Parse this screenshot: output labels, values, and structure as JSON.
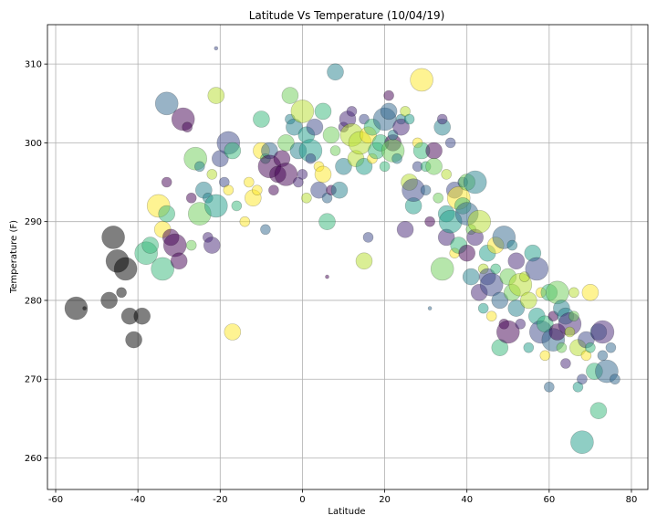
{
  "chart_data": {
    "type": "scatter",
    "title": "Latitude Vs Temperature (10/04/19)",
    "xlabel": "Latitude",
    "ylabel": "Temperature (F)",
    "xlim": [
      -62,
      84
    ],
    "ylim": [
      256,
      315
    ],
    "xticks": [
      "-60",
      "-40",
      "-20",
      "0",
      "20",
      "40",
      "60",
      "80"
    ],
    "yticks": [
      "260",
      "270",
      "280",
      "290",
      "300",
      "310"
    ],
    "grid": true,
    "colormap": "viridis",
    "alpha": 0.5,
    "marker_edge_color": "#000000",
    "points": [
      [
        -55,
        279,
        5
      ],
      [
        -53,
        279,
        2
      ],
      [
        -47,
        280,
        4
      ],
      [
        -46,
        288,
        5
      ],
      [
        -45,
        285,
        7
      ],
      [
        -44,
        281,
        3
      ],
      [
        -43,
        284,
        5
      ],
      [
        -42,
        278,
        4
      ],
      [
        -41,
        275,
        4
      ],
      [
        -39,
        278,
        4
      ],
      [
        -38,
        286,
        5
      ],
      [
        -37,
        287,
        4
      ],
      [
        -35,
        292,
        5
      ],
      [
        -34,
        289,
        4
      ],
      [
        -34,
        284,
        5
      ],
      [
        -33,
        291,
        4
      ],
      [
        -33,
        305,
        5
      ],
      [
        -33,
        295,
        3
      ],
      [
        -32,
        288,
        4
      ],
      [
        -31,
        287,
        5
      ],
      [
        -30,
        285,
        4
      ],
      [
        -29,
        303,
        5
      ],
      [
        -28,
        302,
        3
      ],
      [
        -27,
        293,
        3
      ],
      [
        -27,
        287,
        3
      ],
      [
        -26,
        298,
        5
      ],
      [
        -25,
        291,
        5
      ],
      [
        -25,
        297,
        3
      ],
      [
        -24,
        294,
        4
      ],
      [
        -23,
        293,
        3
      ],
      [
        -23,
        288,
        3
      ],
      [
        -22,
        287,
        4
      ],
      [
        -22,
        296,
        3
      ],
      [
        -21,
        306,
        4
      ],
      [
        -21,
        292,
        5
      ],
      [
        -21,
        312,
        2
      ],
      [
        -20,
        298,
        4
      ],
      [
        -19,
        295,
        3
      ],
      [
        -18,
        300,
        5
      ],
      [
        -18,
        294,
        3
      ],
      [
        -17,
        276,
        4
      ],
      [
        -17,
        299,
        4
      ],
      [
        -16,
        292,
        3
      ],
      [
        -14,
        290,
        3
      ],
      [
        -13,
        295,
        3
      ],
      [
        -12,
        293,
        4
      ],
      [
        -11,
        294,
        3
      ],
      [
        -10,
        299,
        4
      ],
      [
        -10,
        303,
        4
      ],
      [
        -9,
        298,
        3
      ],
      [
        -9,
        289,
        3
      ],
      [
        -8,
        299,
        4
      ],
      [
        -8,
        297,
        5
      ],
      [
        -7,
        294,
        3
      ],
      [
        -6,
        296,
        4
      ],
      [
        -5,
        298,
        4
      ],
      [
        -4,
        296,
        5
      ],
      [
        -4,
        300,
        4
      ],
      [
        -3,
        306,
        4
      ],
      [
        -3,
        303,
        3
      ],
      [
        -2,
        302,
        4
      ],
      [
        -1,
        299,
        4
      ],
      [
        -1,
        295,
        3
      ],
      [
        0,
        296,
        3
      ],
      [
        0,
        304,
        5
      ],
      [
        1,
        293,
        3
      ],
      [
        1,
        301,
        4
      ],
      [
        2,
        299,
        5
      ],
      [
        2,
        298,
        3
      ],
      [
        3,
        302,
        4
      ],
      [
        4,
        294,
        4
      ],
      [
        4,
        297,
        3
      ],
      [
        5,
        296,
        4
      ],
      [
        5,
        304,
        4
      ],
      [
        6,
        290,
        4
      ],
      [
        6,
        293,
        3
      ],
      [
        6,
        283,
        2
      ],
      [
        7,
        294,
        3
      ],
      [
        7,
        301,
        4
      ],
      [
        8,
        299,
        3
      ],
      [
        8,
        309,
        4
      ],
      [
        9,
        294,
        4
      ],
      [
        10,
        297,
        4
      ],
      [
        10,
        302,
        3
      ],
      [
        11,
        303,
        4
      ],
      [
        12,
        304,
        3
      ],
      [
        12,
        301,
        5
      ],
      [
        13,
        298,
        4
      ],
      [
        14,
        300,
        5
      ],
      [
        15,
        285,
        4
      ],
      [
        15,
        297,
        4
      ],
      [
        15,
        303,
        3
      ],
      [
        16,
        288,
        3
      ],
      [
        16,
        301,
        4
      ],
      [
        17,
        298,
        3
      ],
      [
        17,
        302,
        4
      ],
      [
        18,
        299,
        4
      ],
      [
        19,
        300,
        4
      ],
      [
        20,
        297,
        3
      ],
      [
        20,
        303,
        5
      ],
      [
        21,
        304,
        4
      ],
      [
        21,
        306,
        3
      ],
      [
        22,
        300,
        4
      ],
      [
        22,
        299,
        5
      ],
      [
        22,
        301,
        3
      ],
      [
        23,
        298,
        3
      ],
      [
        24,
        303,
        3
      ],
      [
        24,
        302,
        4
      ],
      [
        25,
        289,
        4
      ],
      [
        25,
        304,
        3
      ],
      [
        26,
        295,
        4
      ],
      [
        26,
        303,
        3
      ],
      [
        27,
        292,
        4
      ],
      [
        27,
        294,
        5
      ],
      [
        28,
        297,
        3
      ],
      [
        28,
        300,
        3
      ],
      [
        29,
        308,
        5
      ],
      [
        29,
        299,
        4
      ],
      [
        30,
        297,
        3
      ],
      [
        30,
        294,
        3
      ],
      [
        31,
        279,
        2
      ],
      [
        31,
        290,
        3
      ],
      [
        32,
        299,
        4
      ],
      [
        32,
        297,
        4
      ],
      [
        33,
        293,
        3
      ],
      [
        34,
        284,
        5
      ],
      [
        34,
        302,
        4
      ],
      [
        34,
        303,
        3
      ],
      [
        35,
        288,
        4
      ],
      [
        35,
        296,
        3
      ],
      [
        35,
        291,
        4
      ],
      [
        36,
        290,
        5
      ],
      [
        36,
        300,
        3
      ],
      [
        37,
        294,
        4
      ],
      [
        37,
        286,
        3
      ],
      [
        38,
        293,
        5
      ],
      [
        38,
        287,
        4
      ],
      [
        39,
        292,
        4
      ],
      [
        39,
        295,
        3
      ],
      [
        40,
        291,
        5
      ],
      [
        40,
        286,
        4
      ],
      [
        40,
        295,
        4
      ],
      [
        41,
        289,
        3
      ],
      [
        41,
        283,
        4
      ],
      [
        42,
        295,
        5
      ],
      [
        42,
        288,
        4
      ],
      [
        43,
        281,
        4
      ],
      [
        43,
        290,
        5
      ],
      [
        44,
        284,
        3
      ],
      [
        44,
        279,
        3
      ],
      [
        45,
        286,
        4
      ],
      [
        45,
        283,
        4
      ],
      [
        46,
        282,
        5
      ],
      [
        46,
        278,
        3
      ],
      [
        47,
        287,
        4
      ],
      [
        47,
        284,
        3
      ],
      [
        48,
        274,
        4
      ],
      [
        48,
        280,
        4
      ],
      [
        49,
        288,
        5
      ],
      [
        49,
        277,
        3
      ],
      [
        50,
        276,
        5
      ],
      [
        50,
        283,
        4
      ],
      [
        51,
        281,
        4
      ],
      [
        51,
        287,
        3
      ],
      [
        52,
        279,
        4
      ],
      [
        52,
        285,
        4
      ],
      [
        53,
        277,
        3
      ],
      [
        53,
        282,
        5
      ],
      [
        54,
        283,
        3
      ],
      [
        55,
        280,
        4
      ],
      [
        55,
        274,
        3
      ],
      [
        56,
        286,
        4
      ],
      [
        57,
        278,
        4
      ],
      [
        57,
        284,
        5
      ],
      [
        58,
        276,
        5
      ],
      [
        58,
        281,
        3
      ],
      [
        59,
        273,
        3
      ],
      [
        59,
        277,
        4
      ],
      [
        60,
        281,
        4
      ],
      [
        60,
        269,
        3
      ],
      [
        61,
        275,
        5
      ],
      [
        61,
        278,
        3
      ],
      [
        62,
        276,
        4
      ],
      [
        62,
        281,
        5
      ],
      [
        63,
        274,
        3
      ],
      [
        63,
        279,
        4
      ],
      [
        64,
        278,
        4
      ],
      [
        64,
        272,
        3
      ],
      [
        65,
        277,
        5
      ],
      [
        65,
        276,
        3
      ],
      [
        66,
        281,
        3
      ],
      [
        67,
        274,
        4
      ],
      [
        67,
        269,
        3
      ],
      [
        68,
        262,
        5
      ],
      [
        68,
        270,
        3
      ],
      [
        69,
        275,
        4
      ],
      [
        69,
        273,
        3
      ],
      [
        70,
        281,
        4
      ],
      [
        70,
        274,
        3
      ],
      [
        71,
        271,
        4
      ],
      [
        72,
        266,
        4
      ],
      [
        72,
        276,
        4
      ],
      [
        73,
        273,
        3
      ],
      [
        74,
        271,
        5
      ],
      [
        75,
        274,
        3
      ],
      [
        76,
        270,
        3
      ],
      [
        73,
        276,
        5
      ],
      [
        66,
        278,
        3
      ]
    ]
  }
}
